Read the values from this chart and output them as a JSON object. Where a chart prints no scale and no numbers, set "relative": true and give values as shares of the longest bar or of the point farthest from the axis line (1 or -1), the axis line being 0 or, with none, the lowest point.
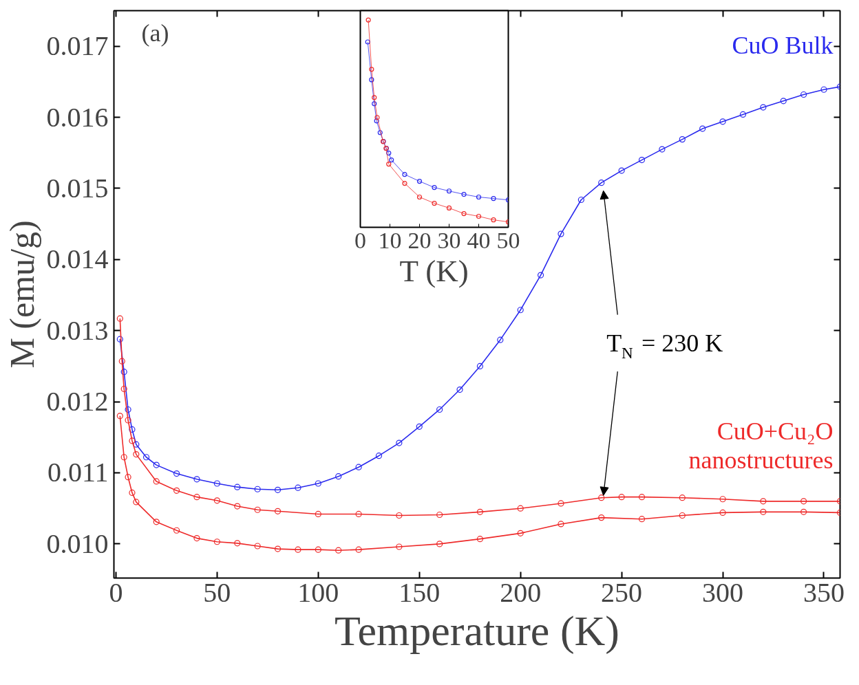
{
  "chart_data": [
    {
      "type": "line",
      "xlabel": "Temperature (K)",
      "ylabel": "M (emu/g)",
      "xlim": [
        -1,
        358
      ],
      "ylim": [
        0.00952,
        0.0175
      ],
      "xticks": [
        0,
        50,
        100,
        150,
        200,
        250,
        300,
        350
      ],
      "yticks": [
        {
          "value": 0.01,
          "label": "0.010"
        },
        {
          "value": 0.011,
          "label": "0.011"
        },
        {
          "value": 0.012,
          "label": "0.012"
        },
        {
          "value": 0.013,
          "label": "0.013"
        },
        {
          "value": 0.014,
          "label": "0.014"
        },
        {
          "value": 0.015,
          "label": "0.015"
        },
        {
          "value": 0.016,
          "label": "0.016"
        },
        {
          "value": 0.017,
          "label": "0.017"
        }
      ],
      "marker": "circle",
      "grid": false,
      "annotations": [
        "(a)",
        {
          "text": "T$_{N}$ = 230 K",
          "x": 240,
          "y": 0.015
        }
      ],
      "series": [
        {
          "name": "CuO Bulk",
          "color": "#2a2aee",
          "x": [
            2,
            4,
            6,
            8,
            10,
            15,
            20,
            30,
            40,
            50,
            60,
            70,
            80,
            90,
            100,
            110,
            120,
            130,
            140,
            150,
            160,
            170,
            180,
            190,
            200,
            210,
            220,
            230,
            240,
            250,
            260,
            270,
            280,
            290,
            300,
            310,
            320,
            330,
            340,
            350,
            358
          ],
          "values": [
            0.01288,
            0.01242,
            0.01189,
            0.01161,
            0.0114,
            0.01122,
            0.01111,
            0.01099,
            0.01091,
            0.01085,
            0.0108,
            0.01077,
            0.01076,
            0.01079,
            0.01085,
            0.01095,
            0.01108,
            0.01124,
            0.01142,
            0.01165,
            0.01189,
            0.01217,
            0.0125,
            0.01287,
            0.01329,
            0.01378,
            0.01436,
            0.01484,
            0.01508,
            0.01525,
            0.0154,
            0.01555,
            0.01569,
            0.01584,
            0.01594,
            0.01604,
            0.01614,
            0.01623,
            0.01632,
            0.01639,
            0.01643
          ]
        },
        {
          "name": "CuO+Cu₂O nanostructures",
          "color": "#ee2a2a",
          "x": [
            2,
            3,
            4,
            6,
            8,
            10,
            20,
            30,
            40,
            50,
            60,
            70,
            80,
            100,
            120,
            140,
            160,
            180,
            200,
            220,
            240,
            250,
            260,
            280,
            300,
            320,
            340,
            358
          ],
          "values": [
            0.01317,
            0.01257,
            0.01218,
            0.01174,
            0.01145,
            0.01126,
            0.01088,
            0.01075,
            0.01066,
            0.01061,
            0.01053,
            0.01048,
            0.01046,
            0.01042,
            0.01042,
            0.0104,
            0.01041,
            0.01045,
            0.0105,
            0.01057,
            0.01065,
            0.01066,
            0.01066,
            0.01065,
            0.01063,
            0.0106,
            0.0106,
            0.0106
          ]
        },
        {
          "color": "#ee2a2a",
          "x": [
            2,
            4,
            6,
            8,
            10,
            20,
            30,
            40,
            50,
            60,
            70,
            80,
            90,
            100,
            110,
            120,
            140,
            160,
            180,
            200,
            220,
            240,
            260,
            280,
            300,
            320,
            340,
            358
          ],
          "values": [
            0.0118,
            0.01122,
            0.01094,
            0.01072,
            0.01059,
            0.01031,
            0.01019,
            0.01008,
            0.01003,
            0.01001,
            0.00997,
            0.00993,
            0.00992,
            0.00992,
            0.00991,
            0.00992,
            0.00996,
            0.01,
            0.01007,
            0.01015,
            0.01028,
            0.01037,
            0.01035,
            0.0104,
            0.01044,
            0.01045,
            0.01045,
            0.01044
          ]
        }
      ]
    },
    {
      "type": "line",
      "xlabel": "T (K)",
      "relative": true,
      "xlim": [
        0,
        50
      ],
      "xticks": [
        0,
        10,
        20,
        30,
        40,
        50
      ],
      "tick_labels": "x",
      "marker": "circle",
      "grid": false,
      "series": [
        {
          "color": "#2a2aee",
          "x": [
            2.5,
            3.8,
            4.7,
            5.5,
            6.7,
            7.8,
            8.8,
            9.6,
            10.5,
            15,
            20,
            25,
            30,
            35,
            40,
            45,
            50
          ],
          "values": [
            0.894,
            0.712,
            0.596,
            0.513,
            0.457,
            0.414,
            0.381,
            0.358,
            0.325,
            0.255,
            0.222,
            0.192,
            0.175,
            0.159,
            0.146,
            0.139,
            0.132
          ]
        },
        {
          "color": "#ee2a2a",
          "x": [
            2.7,
            3.8,
            4.7,
            5.7,
            7.7,
            8.7,
            9.6,
            15,
            20,
            25,
            30,
            35,
            40,
            45,
            50
          ],
          "values": [
            1.0,
            0.762,
            0.626,
            0.53,
            0.414,
            0.381,
            0.305,
            0.212,
            0.146,
            0.116,
            0.093,
            0.066,
            0.053,
            0.036,
            0.026
          ]
        }
      ]
    }
  ]
}
